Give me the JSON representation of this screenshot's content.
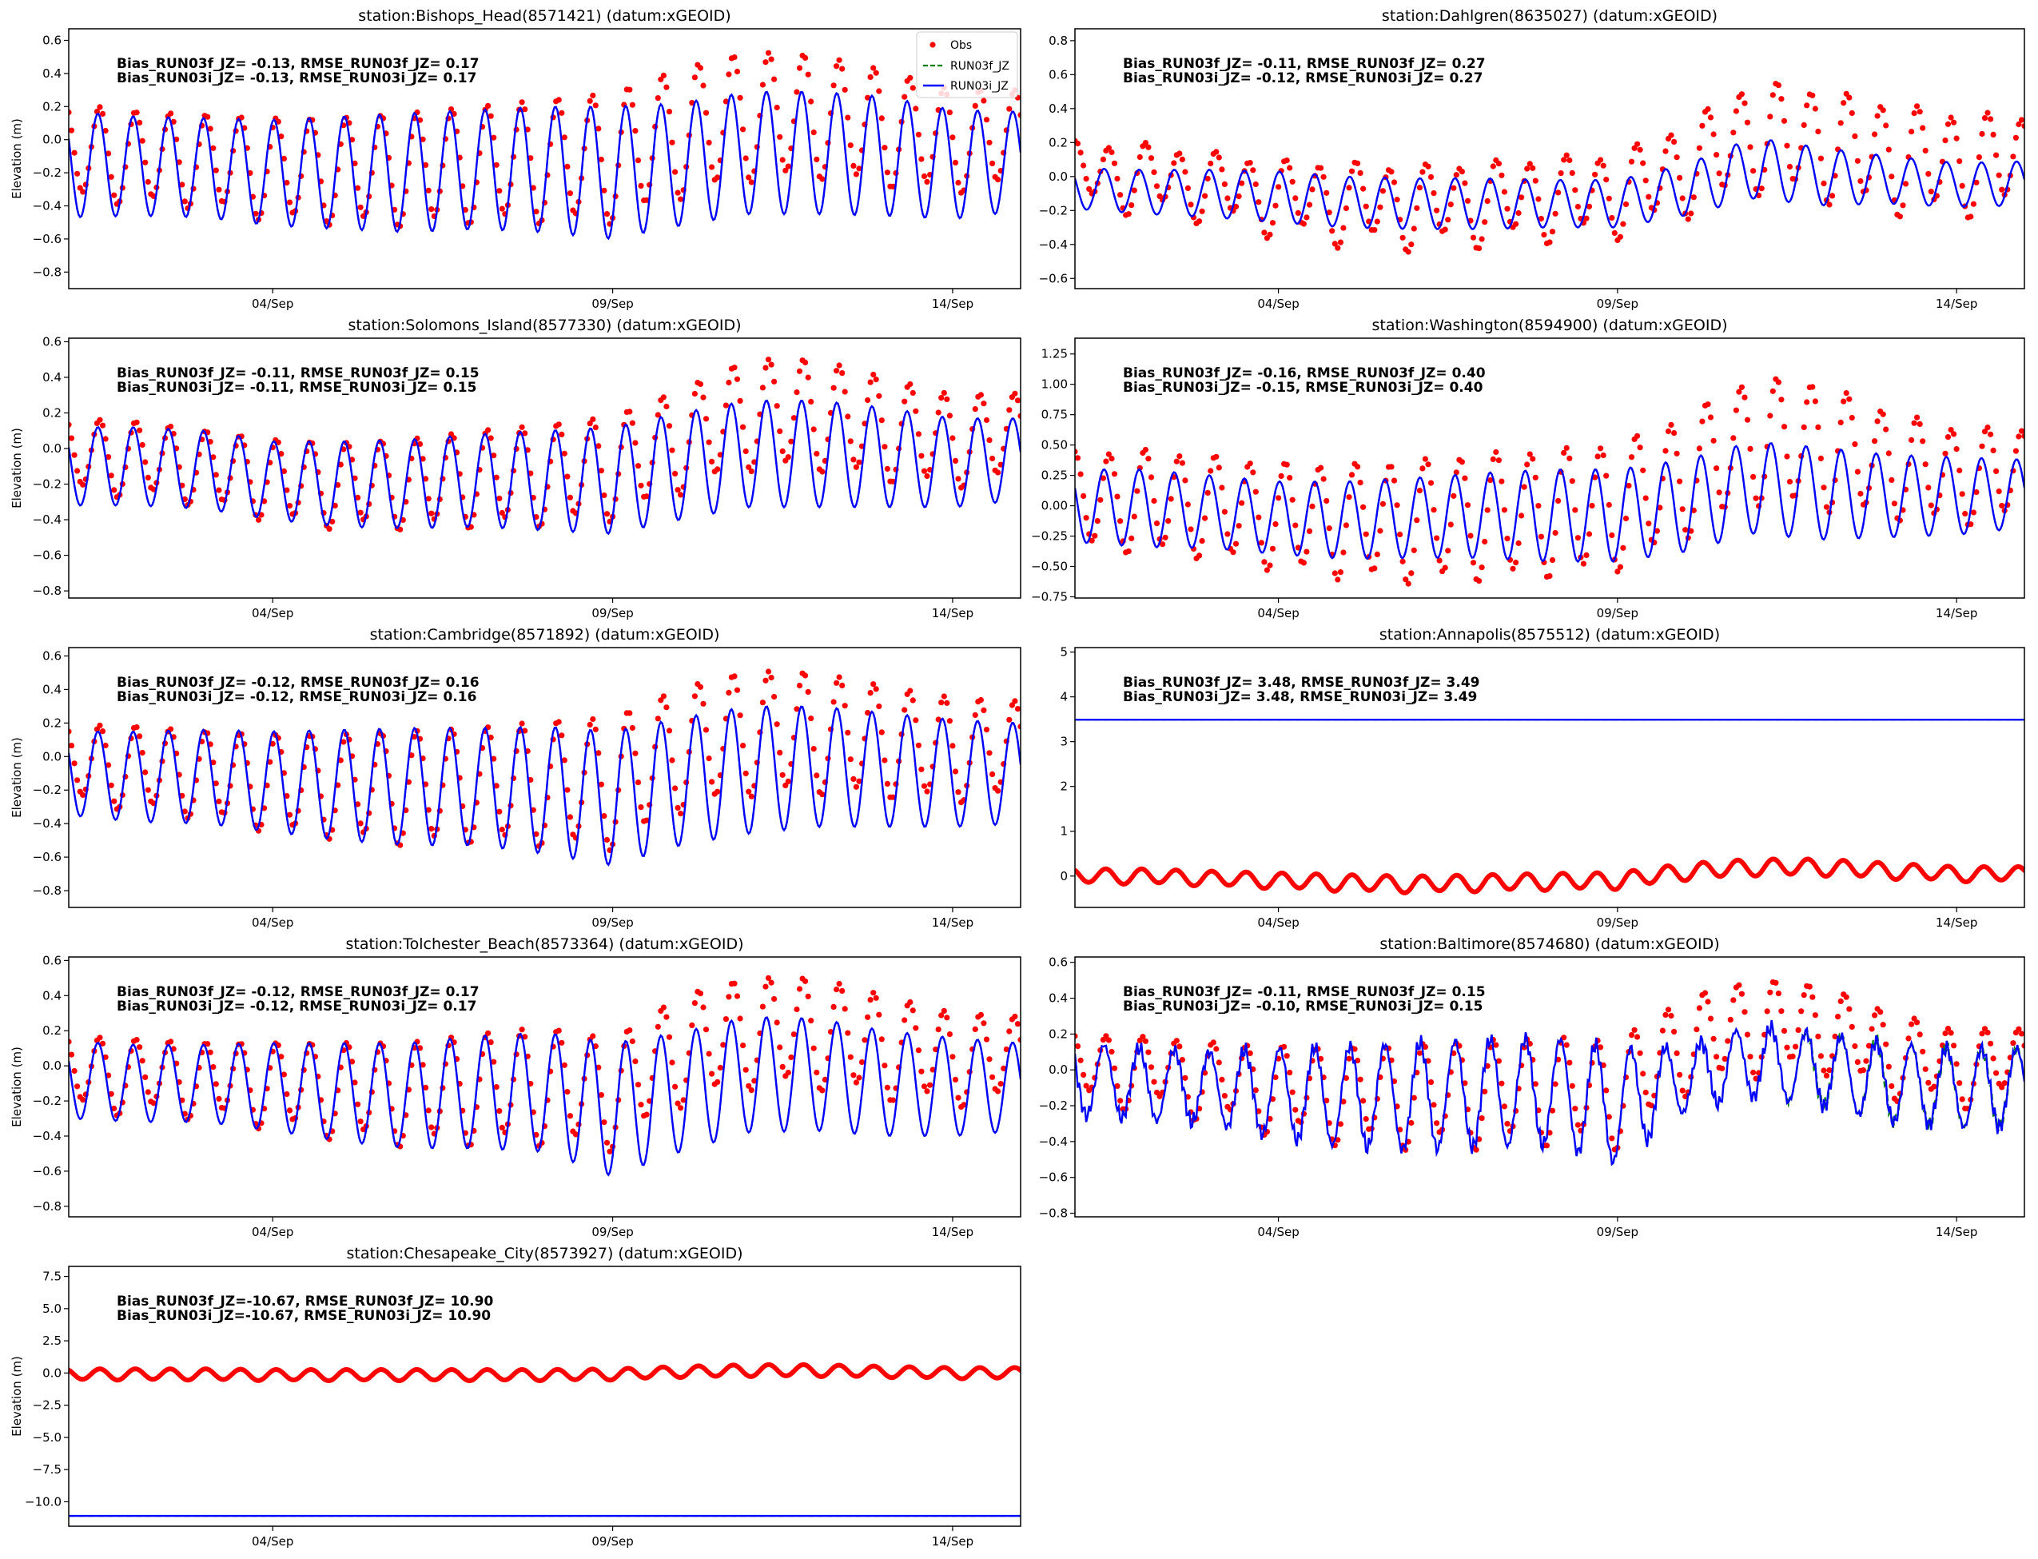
{
  "chart_data": [
    {
      "type": "line",
      "title": "station:Bishops_Head(8571421) (datum:xGEOID)",
      "ylabel": "Elevation (m)",
      "stats": [
        "Bias_RUN03f_JZ= -0.13, RMSE_RUN03f_JZ=  0.17",
        "Bias_RUN03i_JZ= -0.13, RMSE_RUN03i_JZ=  0.17"
      ],
      "ylim": [
        -0.9,
        0.67
      ],
      "yticks": [
        -0.8,
        -0.6,
        -0.4,
        -0.2,
        0.0,
        0.2,
        0.4,
        0.6
      ],
      "ytick_decimals": 1,
      "model": {
        "daily_mean": [
          -0.15,
          -0.16,
          -0.17,
          -0.2,
          -0.2,
          -0.2,
          -0.18,
          -0.18,
          -0.2,
          -0.15,
          -0.08,
          -0.08,
          -0.1,
          -0.15,
          -0.13
        ],
        "daily_amp": [
          0.32,
          0.3,
          0.3,
          0.32,
          0.34,
          0.36,
          0.36,
          0.38,
          0.4,
          0.37,
          0.37,
          0.37,
          0.36,
          0.33,
          0.3
        ]
      },
      "obs": {
        "daily_mean": [
          -0.06,
          -0.1,
          -0.12,
          -0.17,
          -0.18,
          -0.17,
          -0.14,
          -0.12,
          -0.1,
          0.05,
          0.15,
          0.15,
          0.08,
          0.0,
          0.02
        ],
        "daily_amp": [
          0.28,
          0.27,
          0.27,
          0.3,
          0.31,
          0.33,
          0.34,
          0.36,
          0.38,
          0.38,
          0.38,
          0.36,
          0.34,
          0.3,
          0.28
        ],
        "lag_days": 0.03,
        "diurnal_amp": 0.03,
        "step_hours": 1
      },
      "legend": {
        "position": "upper-right",
        "items": [
          "Obs",
          "RUN03f_JZ",
          "RUN03i_JZ"
        ]
      }
    },
    {
      "type": "line",
      "title": "station:Dahlgren(8635027) (datum:xGEOID)",
      "ylabel": "",
      "stats": [
        "Bias_RUN03f_JZ= -0.11, RMSE_RUN03f_JZ=  0.27",
        "Bias_RUN03i_JZ= -0.12, RMSE_RUN03i_JZ=  0.27"
      ],
      "ylim": [
        -0.66,
        0.87
      ],
      "yticks": [
        -0.6,
        -0.4,
        -0.2,
        0.0,
        0.2,
        0.4,
        0.6,
        0.8
      ],
      "ytick_decimals": 1,
      "model": {
        "daily_mean": [
          -0.07,
          -0.09,
          -0.1,
          -0.12,
          -0.15,
          -0.16,
          -0.16,
          -0.16,
          -0.16,
          -0.08,
          0.05,
          0.0,
          -0.02,
          -0.05,
          -0.04
        ],
        "daily_amp": [
          0.12,
          0.13,
          0.14,
          0.15,
          0.15,
          0.15,
          0.15,
          0.14,
          0.14,
          0.15,
          0.18,
          0.17,
          0.14,
          0.13,
          0.13
        ]
      },
      "obs": {
        "daily_mean": [
          0.02,
          0.0,
          -0.05,
          -0.12,
          -0.15,
          -0.17,
          -0.15,
          -0.12,
          -0.1,
          0.05,
          0.25,
          0.2,
          0.12,
          0.08,
          0.1
        ],
        "daily_amp": [
          0.17,
          0.18,
          0.18,
          0.2,
          0.22,
          0.22,
          0.22,
          0.22,
          0.22,
          0.25,
          0.3,
          0.3,
          0.3,
          0.28,
          0.25
        ],
        "lag_days": 0.08,
        "diurnal_amp": 0.06,
        "step_hours": 1
      }
    },
    {
      "type": "line",
      "title": "station:Solomons_Island(8577330) (datum:xGEOID)",
      "ylabel": "Elevation (m)",
      "stats": [
        "Bias_RUN03f_JZ= -0.11, RMSE_RUN03f_JZ=  0.15",
        "Bias_RUN03i_JZ= -0.11, RMSE_RUN03i_JZ=  0.15"
      ],
      "ylim": [
        -0.84,
        0.62
      ],
      "yticks": [
        -0.8,
        -0.6,
        -0.4,
        -0.2,
        0.0,
        0.2,
        0.4,
        0.6
      ],
      "ytick_decimals": 1,
      "model": {
        "daily_mean": [
          -0.1,
          -0.1,
          -0.12,
          -0.18,
          -0.2,
          -0.2,
          -0.18,
          -0.18,
          -0.18,
          -0.1,
          -0.03,
          -0.03,
          -0.05,
          -0.08,
          -0.06
        ],
        "daily_amp": [
          0.22,
          0.22,
          0.22,
          0.22,
          0.24,
          0.25,
          0.26,
          0.28,
          0.3,
          0.3,
          0.3,
          0.3,
          0.28,
          0.25,
          0.23
        ]
      },
      "obs": {
        "daily_mean": [
          -0.03,
          -0.05,
          -0.1,
          -0.17,
          -0.2,
          -0.19,
          -0.16,
          -0.14,
          -0.1,
          0.05,
          0.2,
          0.2,
          0.12,
          0.05,
          0.08
        ],
        "daily_amp": [
          0.2,
          0.2,
          0.2,
          0.22,
          0.23,
          0.24,
          0.26,
          0.27,
          0.28,
          0.28,
          0.3,
          0.3,
          0.28,
          0.25,
          0.23
        ],
        "lag_days": 0.03,
        "diurnal_amp": 0.03,
        "step_hours": 1
      }
    },
    {
      "type": "line",
      "title": "station:Washington(8594900) (datum:xGEOID)",
      "ylabel": "",
      "stats": [
        "Bias_RUN03f_JZ= -0.16, RMSE_RUN03f_JZ=  0.40",
        "Bias_RUN03i_JZ= -0.15, RMSE_RUN03i_JZ=  0.40"
      ],
      "ylim": [
        -0.76,
        1.38
      ],
      "yticks": [
        -0.75,
        -0.5,
        -0.25,
        0.0,
        0.25,
        0.5,
        0.75,
        1.0,
        1.25
      ],
      "ytick_decimals": 2,
      "model": {
        "daily_mean": [
          0.0,
          -0.02,
          -0.05,
          -0.1,
          -0.12,
          -0.1,
          -0.08,
          -0.08,
          -0.08,
          0.0,
          0.15,
          0.1,
          0.08,
          0.08,
          0.1
        ],
        "daily_amp": [
          0.3,
          0.32,
          0.3,
          0.3,
          0.32,
          0.33,
          0.35,
          0.38,
          0.38,
          0.38,
          0.38,
          0.38,
          0.34,
          0.32,
          0.28
        ]
      },
      "obs": {
        "daily_mean": [
          0.05,
          0.05,
          0.0,
          -0.08,
          -0.12,
          -0.12,
          -0.08,
          -0.05,
          0.0,
          0.25,
          0.55,
          0.5,
          0.35,
          0.25,
          0.28
        ],
        "daily_amp": [
          0.38,
          0.4,
          0.4,
          0.42,
          0.45,
          0.48,
          0.5,
          0.5,
          0.5,
          0.48,
          0.5,
          0.5,
          0.42,
          0.38,
          0.35
        ],
        "lag_days": 0.08,
        "diurnal_amp": 0.05,
        "step_hours": 1
      }
    },
    {
      "type": "line",
      "title": "station:Cambridge(8571892) (datum:xGEOID)",
      "ylabel": "Elevation (m)",
      "stats": [
        "Bias_RUN03f_JZ= -0.12, RMSE_RUN03f_JZ=  0.16",
        "Bias_RUN03i_JZ= -0.12, RMSE_RUN03i_JZ=  0.16"
      ],
      "ylim": [
        -0.9,
        0.65
      ],
      "yticks": [
        -0.8,
        -0.6,
        -0.4,
        -0.2,
        0.0,
        0.2,
        0.4,
        0.6
      ],
      "ytick_decimals": 1,
      "model": {
        "daily_mean": [
          -0.1,
          -0.12,
          -0.12,
          -0.15,
          -0.17,
          -0.18,
          -0.18,
          -0.2,
          -0.25,
          -0.15,
          -0.08,
          -0.06,
          -0.08,
          -0.1,
          -0.1
        ],
        "daily_amp": [
          0.25,
          0.27,
          0.28,
          0.3,
          0.33,
          0.35,
          0.35,
          0.38,
          0.4,
          0.38,
          0.38,
          0.36,
          0.34,
          0.32,
          0.3
        ]
      },
      "obs": {
        "daily_mean": [
          -0.03,
          -0.06,
          -0.1,
          -0.15,
          -0.17,
          -0.18,
          -0.16,
          -0.15,
          -0.15,
          0.05,
          0.15,
          0.15,
          0.1,
          0.05,
          0.05
        ],
        "daily_amp": [
          0.22,
          0.24,
          0.25,
          0.28,
          0.3,
          0.33,
          0.33,
          0.36,
          0.38,
          0.36,
          0.36,
          0.35,
          0.32,
          0.3,
          0.28
        ],
        "lag_days": 0.03,
        "diurnal_amp": 0.03,
        "step_hours": 1
      }
    },
    {
      "type": "line",
      "title": "station:Annapolis(8575512) (datum:xGEOID)",
      "ylabel": "",
      "stats": [
        "Bias_RUN03f_JZ=  3.48, RMSE_RUN03f_JZ=  3.49",
        "Bias_RUN03i_JZ=  3.48, RMSE_RUN03i_JZ=  3.49"
      ],
      "ylim": [
        -0.7,
        5.1
      ],
      "yticks": [
        0,
        1,
        2,
        3,
        4,
        5
      ],
      "ytick_decimals": 0,
      "model": {
        "constant": 3.49
      },
      "obs": {
        "daily_mean": [
          0.0,
          0.0,
          -0.05,
          -0.1,
          -0.15,
          -0.18,
          -0.15,
          -0.12,
          -0.1,
          0.1,
          0.2,
          0.2,
          0.12,
          0.05,
          0.05
        ],
        "daily_amp": [
          0.16,
          0.16,
          0.16,
          0.17,
          0.18,
          0.18,
          0.18,
          0.18,
          0.18,
          0.18,
          0.18,
          0.18,
          0.17,
          0.16,
          0.16
        ],
        "lag_days": 0.03,
        "diurnal_amp": 0.02,
        "step_hours": 0.25
      }
    },
    {
      "type": "line",
      "title": "station:Tolchester_Beach(8573364) (datum:xGEOID)",
      "ylabel": "Elevation (m)",
      "stats": [
        "Bias_RUN03f_JZ= -0.12, RMSE_RUN03f_JZ=  0.17",
        "Bias_RUN03i_JZ= -0.12, RMSE_RUN03i_JZ=  0.17"
      ],
      "ylim": [
        -0.86,
        0.62
      ],
      "yticks": [
        -0.8,
        -0.6,
        -0.4,
        -0.2,
        0.0,
        0.2,
        0.4,
        0.6
      ],
      "ytick_decimals": 1,
      "model": {
        "daily_mean": [
          -0.08,
          -0.1,
          -0.1,
          -0.12,
          -0.15,
          -0.17,
          -0.15,
          -0.15,
          -0.25,
          -0.15,
          -0.05,
          -0.05,
          -0.1,
          -0.12,
          -0.12
        ],
        "daily_amp": [
          0.22,
          0.22,
          0.22,
          0.25,
          0.28,
          0.3,
          0.32,
          0.34,
          0.38,
          0.34,
          0.33,
          0.32,
          0.3,
          0.28,
          0.25
        ]
      },
      "obs": {
        "daily_mean": [
          -0.03,
          -0.05,
          -0.07,
          -0.1,
          -0.13,
          -0.15,
          -0.12,
          -0.1,
          -0.15,
          0.1,
          0.2,
          0.2,
          0.12,
          0.05,
          0.05
        ],
        "daily_amp": [
          0.2,
          0.2,
          0.2,
          0.23,
          0.26,
          0.28,
          0.3,
          0.32,
          0.3,
          0.3,
          0.3,
          0.3,
          0.28,
          0.25,
          0.23
        ],
        "lag_days": 0.03,
        "diurnal_amp": 0.04,
        "step_hours": 1
      }
    },
    {
      "type": "line",
      "title": "station:Baltimore(8574680) (datum:xGEOID)",
      "ylabel": "",
      "stats": [
        "Bias_RUN03f_JZ= -0.11, RMSE_RUN03f_JZ=  0.15",
        "Bias_RUN03i_JZ= -0.10, RMSE_RUN03i_JZ=  0.15"
      ],
      "ylim": [
        -0.82,
        0.63
      ],
      "yticks": [
        -0.8,
        -0.6,
        -0.4,
        -0.2,
        0.0,
        0.2,
        0.4,
        0.6
      ],
      "ytick_decimals": 1,
      "model": {
        "daily_mean": [
          -0.05,
          -0.08,
          -0.1,
          -0.13,
          -0.15,
          -0.15,
          -0.13,
          -0.12,
          -0.2,
          -0.05,
          0.05,
          0.0,
          -0.07,
          -0.1,
          -0.1
        ],
        "daily_amp": [
          0.2,
          0.2,
          0.2,
          0.25,
          0.28,
          0.3,
          0.3,
          0.3,
          0.32,
          0.18,
          0.2,
          0.2,
          0.22,
          0.22,
          0.22
        ],
        "noise": 0.05,
        "f_deviation_from_day": 10.5
      },
      "obs": {
        "daily_mean": [
          0.02,
          0.0,
          -0.05,
          -0.1,
          -0.13,
          -0.13,
          -0.12,
          -0.1,
          -0.12,
          0.15,
          0.25,
          0.25,
          0.1,
          0.02,
          0.05
        ],
        "daily_amp": [
          0.18,
          0.18,
          0.2,
          0.23,
          0.25,
          0.27,
          0.28,
          0.28,
          0.28,
          0.25,
          0.25,
          0.22,
          0.22,
          0.2,
          0.18
        ],
        "lag_days": 0.04,
        "diurnal_amp": 0.05,
        "step_hours": 1
      }
    },
    {
      "type": "line",
      "title": "station:Chesapeake_City(8573927) (datum:xGEOID)",
      "ylabel": "Elevation (m)",
      "stats": [
        "Bias_RUN03f_JZ=-10.67, RMSE_RUN03f_JZ= 10.90",
        "Bias_RUN03i_JZ=-10.67, RMSE_RUN03i_JZ= 10.90"
      ],
      "ylim": [
        -11.9,
        8.28
      ],
      "yticks": [
        -10.0,
        -7.5,
        -5.0,
        -2.5,
        0.0,
        2.5,
        5.0,
        7.5
      ],
      "ytick_decimals": 1,
      "model": {
        "steps": [
          [
            0,
            -11.1
          ],
          [
            14.72,
            6.0
          ]
        ]
      },
      "obs": {
        "daily_mean": [
          -0.1,
          -0.1,
          -0.1,
          -0.15,
          -0.15,
          -0.15,
          -0.15,
          -0.15,
          -0.1,
          0.1,
          0.2,
          0.2,
          0.1,
          0.0,
          0.0
        ],
        "daily_amp": [
          0.42,
          0.42,
          0.42,
          0.42,
          0.42,
          0.42,
          0.42,
          0.42,
          0.42,
          0.42,
          0.45,
          0.45,
          0.42,
          0.42,
          0.42
        ],
        "lag_days": 0.03,
        "diurnal_amp": 0.03,
        "step_hours": 0.25
      }
    }
  ],
  "x_axis": {
    "start": "01/Sep",
    "span_days": 14,
    "ticks": [
      {
        "day": 3,
        "label": "04/Sep"
      },
      {
        "day": 8,
        "label": "09/Sep"
      },
      {
        "day": 13,
        "label": "14/Sep"
      }
    ]
  },
  "tide": {
    "period_days": 0.5175,
    "first_peak_day": 0.43
  },
  "colors": {
    "obs": "#ff0000",
    "run03f": "#008000",
    "run03i": "#0000ff"
  }
}
